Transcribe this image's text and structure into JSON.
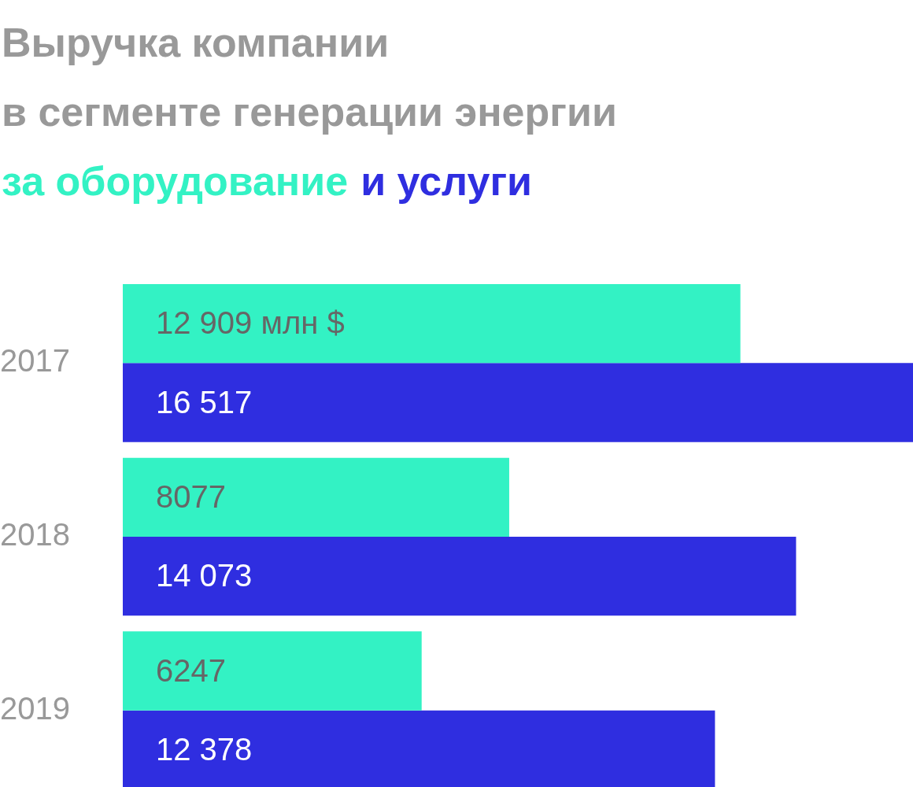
{
  "chart_data": {
    "type": "bar",
    "orientation": "horizontal",
    "title": "Выручка компании\nв сегменте генерации энергии",
    "categories": [
      "2017",
      "2018",
      "2019"
    ],
    "series": [
      {
        "name": "за оборудование",
        "color": "#33f2c4",
        "values": [
          12909,
          8077,
          6247
        ],
        "value_labels": [
          "12 909 млн $",
          "8077",
          "6247"
        ]
      },
      {
        "name": "и услуги",
        "color": "#2f2ee0",
        "values": [
          16517,
          14073,
          12378
        ],
        "value_labels": [
          "16 517",
          "14 073",
          "12 378"
        ]
      }
    ],
    "xlim": [
      0,
      16517
    ],
    "tick_labels": "y",
    "legend": "top"
  }
}
